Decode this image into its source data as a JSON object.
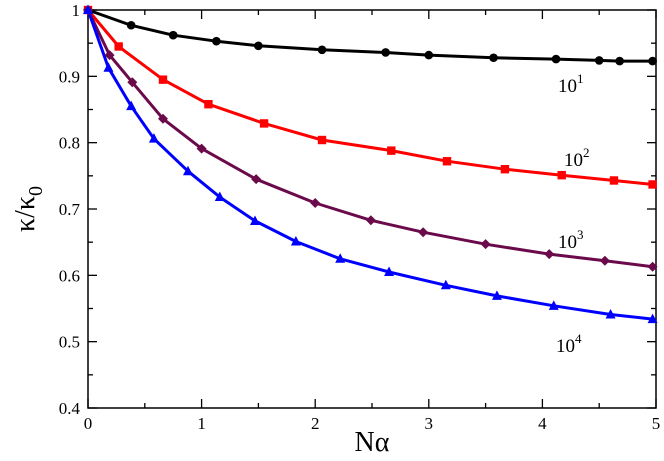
{
  "chart_data": {
    "type": "line",
    "title": "",
    "xlabel": "Nα",
    "ylabel": {
      "main": "κ/κ",
      "subscript": "0"
    },
    "xlim": [
      0,
      5
    ],
    "ylim": [
      0.4,
      1.0
    ],
    "grid": false,
    "x_ticks": [
      "0",
      "1",
      "2",
      "3",
      "4",
      "5"
    ],
    "y_ticks": [
      "0.4",
      "0.5",
      "0.6",
      "0.7",
      "0.8",
      "0.9",
      "1"
    ],
    "series": [
      {
        "name": "10^1",
        "label_base": "10",
        "label_exp": "1",
        "color": "#000000",
        "marker": "circle",
        "x": [
          0,
          0.38,
          0.75,
          1.13,
          1.5,
          2.06,
          2.62,
          3.0,
          3.57,
          4.12,
          4.5,
          4.68,
          4.97
        ],
        "y": [
          1.0,
          0.977,
          0.962,
          0.953,
          0.946,
          0.94,
          0.936,
          0.932,
          0.928,
          0.926,
          0.924,
          0.923,
          0.923
        ]
      },
      {
        "name": "10^2",
        "label_base": "10",
        "label_exp": "2",
        "color": "#ff0000",
        "marker": "square",
        "x": [
          0,
          0.27,
          0.66,
          1.06,
          1.55,
          2.06,
          2.67,
          3.16,
          3.67,
          4.17,
          4.63,
          4.97
        ],
        "y": [
          1.0,
          0.945,
          0.895,
          0.858,
          0.829,
          0.804,
          0.788,
          0.772,
          0.76,
          0.751,
          0.743,
          0.737
        ]
      },
      {
        "name": "10^3",
        "label_base": "10",
        "label_exp": "3",
        "color": "#6b0a4a",
        "marker": "diamond",
        "x": [
          0,
          0.19,
          0.39,
          0.66,
          1.0,
          1.48,
          2.0,
          2.49,
          2.95,
          3.5,
          4.06,
          4.55,
          4.97
        ],
        "y": [
          1.0,
          0.932,
          0.891,
          0.836,
          0.791,
          0.745,
          0.709,
          0.683,
          0.665,
          0.647,
          0.632,
          0.622,
          0.613
        ]
      },
      {
        "name": "10^4",
        "label_base": "10",
        "label_exp": "4",
        "color": "#0000ff",
        "marker": "triangle",
        "x": [
          0,
          0.18,
          0.38,
          0.58,
          0.88,
          1.16,
          1.47,
          1.83,
          2.22,
          2.65,
          3.15,
          3.6,
          4.1,
          4.6,
          4.97
        ],
        "y": [
          1.0,
          0.913,
          0.855,
          0.806,
          0.757,
          0.718,
          0.682,
          0.651,
          0.625,
          0.605,
          0.585,
          0.569,
          0.554,
          0.541,
          0.534
        ]
      }
    ]
  }
}
